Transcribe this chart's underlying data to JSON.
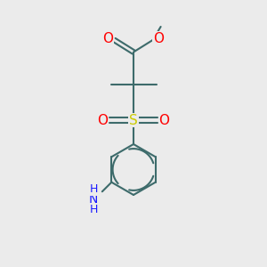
{
  "background_color": "#ebebeb",
  "bond_color": "#3d6b6b",
  "atom_colors": {
    "O": "#ff0000",
    "S": "#cccc00",
    "N": "#1a1aff",
    "C": "#000000"
  },
  "figsize": [
    3.0,
    3.0
  ],
  "dpi": 100,
  "bond_lw": 1.5
}
